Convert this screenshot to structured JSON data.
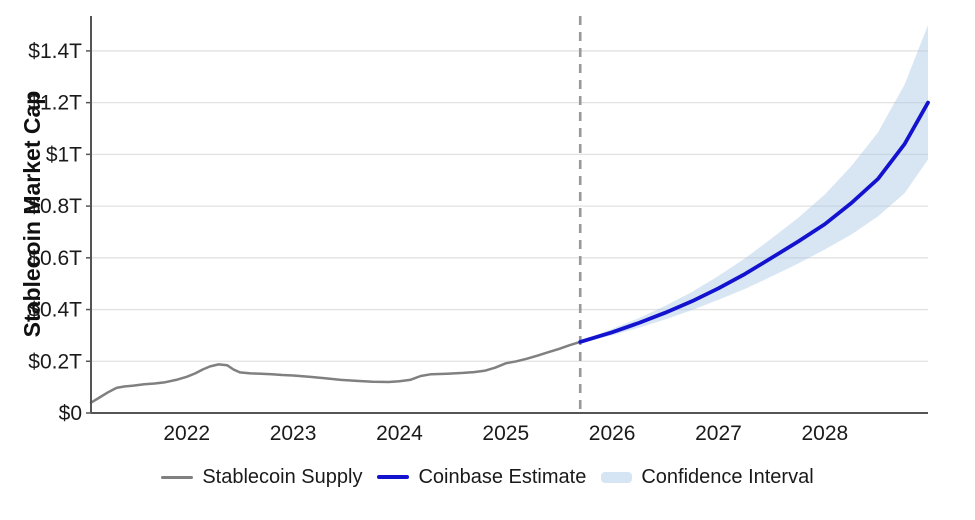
{
  "chart_data": {
    "type": "line",
    "title": "",
    "xlabel": "",
    "ylabel": "Stablecoin Market Cap",
    "grid": "horizontal",
    "legend_position": "bottom",
    "xlim": [
      2021.1,
      2028.97
    ],
    "ylim": [
      0,
      1.535
    ],
    "x_ticks": [
      {
        "value": 2022,
        "label": "2022"
      },
      {
        "value": 2023,
        "label": "2023"
      },
      {
        "value": 2024,
        "label": "2024"
      },
      {
        "value": 2025,
        "label": "2025"
      },
      {
        "value": 2026,
        "label": "2026"
      },
      {
        "value": 2027,
        "label": "2027"
      },
      {
        "value": 2028,
        "label": "2028"
      }
    ],
    "y_ticks": [
      {
        "value": 0,
        "label": "$0"
      },
      {
        "value": 0.2,
        "label": "$0.2T"
      },
      {
        "value": 0.4,
        "label": "$0.4T"
      },
      {
        "value": 0.6,
        "label": "$0.6T"
      },
      {
        "value": 0.8,
        "label": "$0.8T"
      },
      {
        "value": 1.0,
        "label": "$1T"
      },
      {
        "value": 1.2,
        "label": "$1.2T"
      },
      {
        "value": 1.4,
        "label": "$1.4T"
      }
    ],
    "forecast_start_x": 2025.7,
    "series": [
      {
        "name": "Stablecoin Supply",
        "type": "line",
        "color": "#808080",
        "width": 2.5,
        "x": [
          2021.1,
          2021.18,
          2021.26,
          2021.34,
          2021.42,
          2021.5,
          2021.6,
          2021.7,
          2021.8,
          2021.9,
          2022.0,
          2022.08,
          2022.15,
          2022.22,
          2022.3,
          2022.38,
          2022.44,
          2022.5,
          2022.6,
          2022.7,
          2022.8,
          2022.9,
          2023.0,
          2023.15,
          2023.3,
          2023.45,
          2023.6,
          2023.75,
          2023.9,
          2024.0,
          2024.1,
          2024.2,
          2024.3,
          2024.45,
          2024.6,
          2024.7,
          2024.8,
          2024.9,
          2025.0,
          2025.1,
          2025.2,
          2025.3,
          2025.4,
          2025.5,
          2025.6,
          2025.7
        ],
        "y": [
          0.04,
          0.06,
          0.08,
          0.097,
          0.103,
          0.106,
          0.111,
          0.114,
          0.119,
          0.128,
          0.14,
          0.153,
          0.168,
          0.18,
          0.188,
          0.185,
          0.168,
          0.157,
          0.153,
          0.152,
          0.15,
          0.147,
          0.145,
          0.14,
          0.134,
          0.128,
          0.124,
          0.121,
          0.12,
          0.123,
          0.128,
          0.143,
          0.15,
          0.152,
          0.155,
          0.158,
          0.163,
          0.175,
          0.192,
          0.2,
          0.21,
          0.222,
          0.235,
          0.248,
          0.262,
          0.275
        ]
      },
      {
        "name": "Coinbase Estimate",
        "type": "line",
        "color": "#1212cf",
        "width": 3.8,
        "x": [
          2025.7,
          2026.0,
          2026.25,
          2026.5,
          2026.75,
          2027.0,
          2027.25,
          2027.5,
          2027.75,
          2028.0,
          2028.25,
          2028.5,
          2028.75,
          2028.97
        ],
        "y": [
          0.275,
          0.312,
          0.348,
          0.388,
          0.432,
          0.482,
          0.538,
          0.6,
          0.663,
          0.73,
          0.812,
          0.905,
          1.04,
          1.2
        ]
      },
      {
        "name": "Confidence Interval",
        "type": "band",
        "color": "#a9c8e6",
        "opacity": 0.45,
        "x": [
          2025.7,
          2026.0,
          2026.25,
          2026.5,
          2026.75,
          2027.0,
          2027.25,
          2027.5,
          2027.75,
          2028.0,
          2028.25,
          2028.5,
          2028.75,
          2028.97
        ],
        "upper": [
          0.278,
          0.325,
          0.366,
          0.415,
          0.468,
          0.53,
          0.598,
          0.675,
          0.755,
          0.845,
          0.955,
          1.085,
          1.27,
          1.5
        ],
        "lower": [
          0.272,
          0.3,
          0.33,
          0.362,
          0.398,
          0.438,
          0.48,
          0.528,
          0.578,
          0.632,
          0.69,
          0.76,
          0.85,
          0.98
        ]
      }
    ],
    "colors": {
      "grid": "#e2e2e2",
      "axis": "#555555",
      "forecast_divider": "#999999",
      "tick_label": "#1a1a1a",
      "supply_line": "#808080",
      "estimate_line": "#1212cf",
      "confidence_band": "#d6e5f3"
    }
  },
  "legend": {
    "items": [
      {
        "label": "Stablecoin Supply",
        "swatch": "line-gray"
      },
      {
        "label": "Coinbase Estimate",
        "swatch": "line-blue"
      },
      {
        "label": "Confidence Interval",
        "swatch": "band-lightblue"
      }
    ]
  }
}
